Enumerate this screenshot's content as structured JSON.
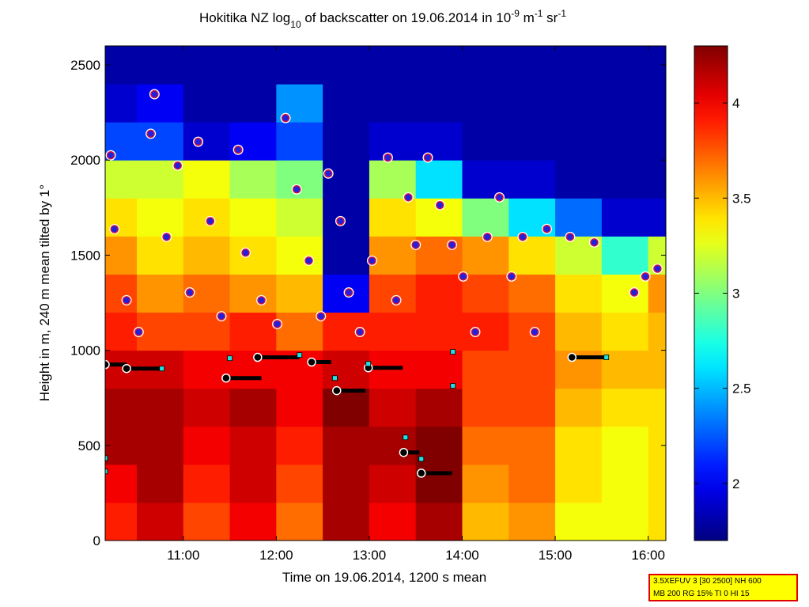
{
  "chart_data": {
    "type": "heatmap",
    "title_parts": [
      "Hokitika NZ log",
      "10",
      " of backscatter on 19.06.2014 in 10",
      "-9",
      " m",
      "-1",
      " sr",
      "-1"
    ],
    "xlabel": "Time on 19.06.2014, 1200 s mean",
    "ylabel": "Height in m, 240 m mean tilted by 1°",
    "xlim": [
      10.16,
      16.19
    ],
    "xticks": [
      {
        "value": 11,
        "label": "11:00"
      },
      {
        "value": 12,
        "label": "12:00"
      },
      {
        "value": 13,
        "label": "13:00"
      },
      {
        "value": 14,
        "label": "14:00"
      },
      {
        "value": 15,
        "label": "15:00"
      },
      {
        "value": 16,
        "label": "16:00"
      }
    ],
    "ylim": [
      0,
      2600
    ],
    "yticks": [
      0,
      500,
      1000,
      1500,
      2000,
      2500
    ],
    "colormap": "jet",
    "clim": [
      1.7,
      4.3
    ],
    "cticks": [
      2,
      2.5,
      3,
      3.5,
      4
    ],
    "heatmap": {
      "x": [
        10.25,
        10.75,
        11.25,
        11.75,
        12.25,
        12.75,
        13.25,
        13.75,
        14.25,
        14.75,
        15.25,
        15.75,
        16.25
      ],
      "y": [
        100,
        300,
        500,
        700,
        900,
        1100,
        1300,
        1500,
        1700,
        1900,
        2100,
        2300,
        2500
      ],
      "z": [
        [
          3.9,
          4.1,
          3.8,
          4.0,
          3.7,
          4.2,
          4.0,
          4.2,
          3.5,
          3.6,
          3.3,
          3.3,
          3.4
        ],
        [
          4.0,
          4.2,
          3.9,
          4.1,
          3.8,
          4.2,
          4.1,
          4.3,
          3.6,
          3.7,
          3.4,
          3.3,
          3.4
        ],
        [
          4.2,
          4.2,
          4.0,
          4.1,
          3.9,
          4.2,
          4.2,
          4.3,
          3.7,
          3.7,
          3.4,
          3.3,
          3.4
        ],
        [
          4.2,
          4.2,
          4.1,
          4.2,
          4.0,
          4.3,
          4.1,
          4.2,
          3.8,
          3.8,
          3.5,
          3.4,
          3.4
        ],
        [
          4.1,
          4.1,
          4.0,
          4.0,
          4.0,
          4.1,
          4.0,
          4.0,
          3.8,
          3.8,
          3.6,
          3.5,
          3.5
        ],
        [
          3.9,
          3.8,
          3.8,
          3.9,
          3.7,
          3.9,
          3.9,
          3.9,
          3.9,
          3.8,
          3.5,
          3.4,
          3.5
        ],
        [
          3.8,
          3.6,
          3.7,
          3.6,
          3.5,
          2.0,
          3.8,
          3.9,
          3.8,
          3.7,
          3.4,
          3.3,
          3.6
        ],
        [
          3.6,
          3.4,
          3.5,
          3.4,
          3.3,
          1.8,
          3.6,
          3.7,
          3.6,
          3.4,
          3.2,
          2.8,
          3.2
        ],
        [
          3.4,
          3.3,
          3.4,
          3.3,
          3.2,
          1.8,
          3.4,
          3.3,
          3.0,
          2.6,
          2.3,
          1.9,
          1.9
        ],
        [
          3.2,
          3.2,
          3.3,
          3.1,
          3.0,
          1.8,
          3.1,
          2.6,
          1.9,
          1.9,
          1.8,
          1.8,
          1.8
        ],
        [
          2.2,
          2.2,
          1.9,
          2.0,
          2.2,
          1.8,
          1.9,
          1.9,
          1.8,
          1.8,
          1.8,
          1.8,
          1.8
        ],
        [
          1.9,
          2.0,
          1.8,
          1.8,
          2.4,
          1.8,
          1.8,
          1.8,
          1.8,
          1.8,
          1.8,
          1.8,
          1.8
        ],
        [
          1.8,
          1.8,
          1.8,
          1.8,
          1.8,
          1.8,
          1.8,
          1.8,
          1.8,
          1.8,
          1.8,
          1.8,
          1.8
        ]
      ]
    },
    "layers": {
      "color": "#2020e0",
      "edge_color": "#d0103a",
      "x": [
        10.22,
        10.26,
        10.39,
        10.52,
        10.65,
        10.69,
        10.82,
        10.94,
        11.07,
        11.16,
        11.29,
        11.41,
        11.59,
        11.67,
        11.84,
        12.01,
        12.1,
        12.22,
        12.35,
        12.48,
        12.56,
        12.69,
        12.78,
        12.9,
        13.03,
        13.2,
        13.29,
        13.42,
        13.5,
        13.63,
        13.76,
        13.89,
        14.01,
        14.14,
        14.27,
        14.4,
        14.53,
        14.65,
        14.78,
        14.91,
        15.16,
        15.42,
        15.85,
        15.97,
        16.1
      ],
      "y": [
        2025,
        1637,
        1263,
        1096,
        2138,
        2346,
        1596,
        1971,
        1304,
        2096,
        1679,
        1179,
        2054,
        1513,
        1263,
        1138,
        2221,
        1846,
        1471,
        1179,
        1929,
        1679,
        1304,
        1096,
        1471,
        2013,
        1263,
        1804,
        1554,
        2013,
        1763,
        1554,
        1388,
        1096,
        1596,
        1804,
        1388,
        1596,
        1096,
        1638,
        1596,
        1567,
        1304,
        1388,
        1429
      ]
    },
    "cloud_base": {
      "color": "#000000",
      "x_start": [
        10.16,
        10.39,
        11.46,
        11.8,
        12.38,
        12.65,
        12.99,
        13.37,
        13.56,
        15.18
      ],
      "x_end": [
        10.39,
        10.77,
        11.84,
        12.25,
        12.59,
        12.96,
        13.36,
        13.54,
        13.89,
        15.55
      ],
      "y": [
        925,
        904,
        854,
        963,
        938,
        788,
        908,
        463,
        354,
        963
      ]
    },
    "markers": {
      "color": "#20e0e0",
      "x": [
        10.16,
        10.16,
        11.5,
        10.77,
        12.25,
        13.9,
        13.9,
        13.39,
        13.56,
        15.55,
        12.99,
        12.63
      ],
      "y": [
        433,
        363,
        958,
        904,
        975,
        992,
        813,
        542,
        429,
        963,
        929,
        854
      ]
    },
    "info": [
      "3.5XEFUV 3 [30 2500] NH 600",
      "MB 200 RG 15% TI 0 HI 15"
    ]
  }
}
